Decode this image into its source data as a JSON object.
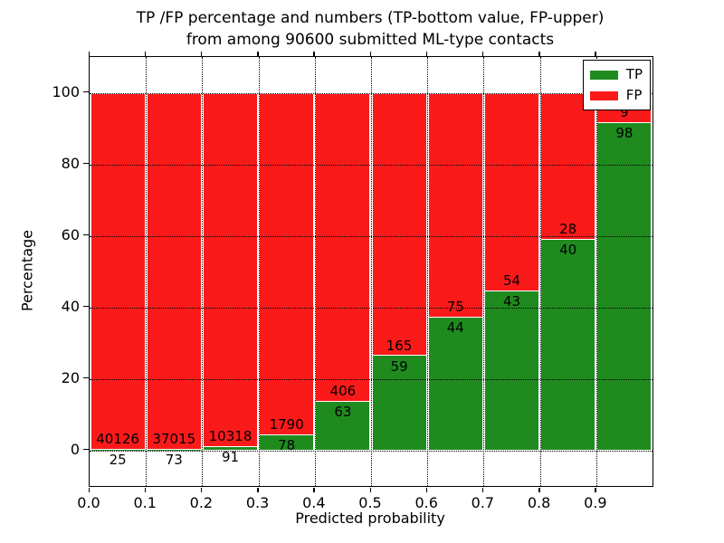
{
  "chart_data": {
    "type": "bar",
    "stacked": true,
    "normalized_each_bar_to": 100,
    "title_line1": "TP /FP percentage and numbers (TP-bottom value, FP-upper)",
    "title_line2": "from among 90600 submitted ML-type contacts",
    "xlabel": "Predicted probability",
    "ylabel": "Percentage",
    "x_tick_labels": [
      "0.0",
      "0.1",
      "0.2",
      "0.3",
      "0.4",
      "0.5",
      "0.6",
      "0.7",
      "0.8",
      "0.9"
    ],
    "y_ticks": [
      {
        "value": 0,
        "label": "0"
      },
      {
        "value": 20,
        "label": "20"
      },
      {
        "value": 40,
        "label": "40"
      },
      {
        "value": 60,
        "label": "60"
      },
      {
        "value": 80,
        "label": "80"
      },
      {
        "value": 100,
        "label": "100"
      }
    ],
    "xlim": [
      0.0,
      1.0
    ],
    "ylim": [
      -10,
      110
    ],
    "grid": true,
    "legend": {
      "position": "upper right",
      "entries": [
        {
          "label": "TP",
          "color": "#1f8b1f"
        },
        {
          "label": "FP",
          "color": "#fb1a1a"
        }
      ]
    },
    "bins": [
      {
        "x_range": [
          0.0,
          0.1
        ],
        "tp": 25,
        "fp": 40126
      },
      {
        "x_range": [
          0.1,
          0.2
        ],
        "tp": 73,
        "fp": 37015
      },
      {
        "x_range": [
          0.2,
          0.3
        ],
        "tp": 91,
        "fp": 10318
      },
      {
        "x_range": [
          0.3,
          0.4
        ],
        "tp": 78,
        "fp": 1790
      },
      {
        "x_range": [
          0.4,
          0.5
        ],
        "tp": 63,
        "fp": 406
      },
      {
        "x_range": [
          0.5,
          0.6
        ],
        "tp": 59,
        "fp": 165
      },
      {
        "x_range": [
          0.6,
          0.7
        ],
        "tp": 44,
        "fp": 75
      },
      {
        "x_range": [
          0.7,
          0.8
        ],
        "tp": 43,
        "fp": 54
      },
      {
        "x_range": [
          0.8,
          0.9
        ],
        "tp": 40,
        "fp": 28
      },
      {
        "x_range": [
          0.9,
          1.0
        ],
        "tp": 98,
        "fp": 9
      }
    ],
    "colors": {
      "tp": "#1f8b1f",
      "fp": "#fb1a1a",
      "bar_edge": "#ffffff",
      "grid": "#000000",
      "text": "#000000",
      "background": "#ffffff"
    }
  }
}
